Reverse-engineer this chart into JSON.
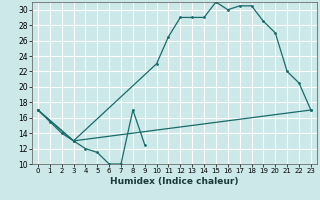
{
  "xlabel": "Humidex (Indice chaleur)",
  "bg_color": "#cce8e8",
  "grid_color": "#ffffff",
  "line_color": "#1a6b6b",
  "xlim": [
    -0.5,
    23.5
  ],
  "ylim": [
    10,
    31
  ],
  "xticks": [
    0,
    1,
    2,
    3,
    4,
    5,
    6,
    7,
    8,
    9,
    10,
    11,
    12,
    13,
    14,
    15,
    16,
    17,
    18,
    19,
    20,
    21,
    22,
    23
  ],
  "yticks": [
    10,
    12,
    14,
    16,
    18,
    20,
    22,
    24,
    26,
    28,
    30
  ],
  "line1_x": [
    0,
    1,
    2,
    3,
    4,
    5,
    6,
    7,
    8,
    9
  ],
  "line1_y": [
    17,
    15.5,
    14,
    13,
    12,
    11.5,
    10,
    10,
    17,
    12.5
  ],
  "line2_x": [
    0,
    3,
    23
  ],
  "line2_y": [
    17,
    13,
    17
  ],
  "line3_x": [
    0,
    3,
    10,
    11,
    12,
    13,
    14,
    15,
    16,
    17,
    18,
    19,
    20,
    21,
    22,
    23
  ],
  "line3_y": [
    17,
    13,
    23,
    26.5,
    29,
    29,
    29,
    31,
    30,
    30.5,
    30.5,
    28.5,
    27,
    22,
    20.5,
    17
  ]
}
